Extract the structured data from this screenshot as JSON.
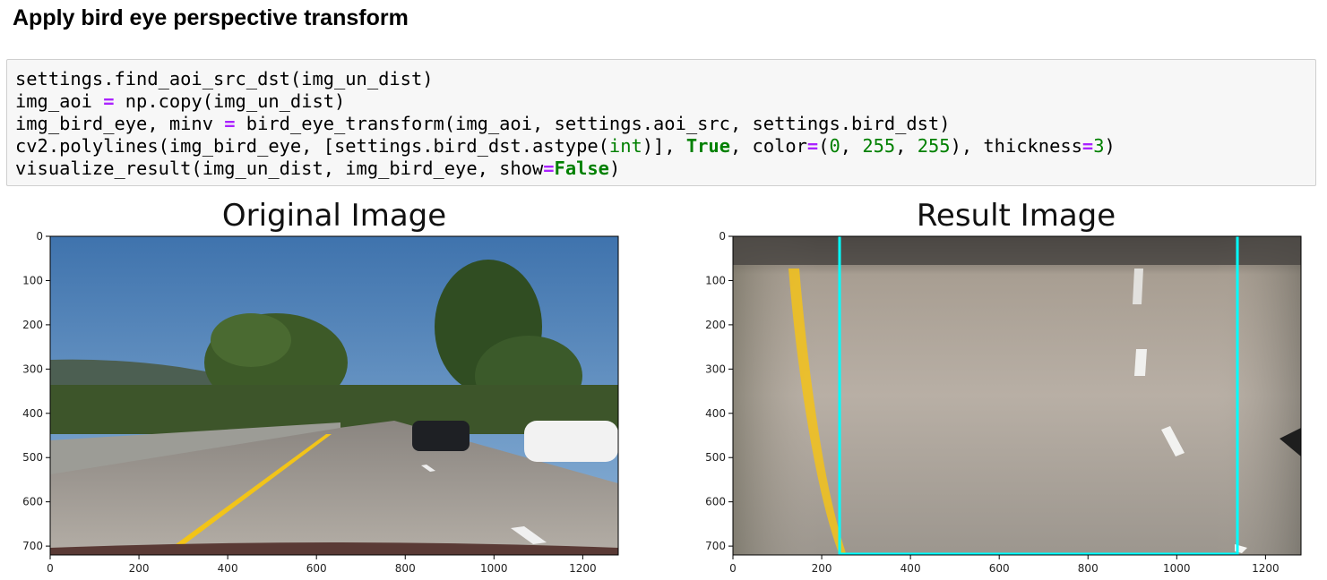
{
  "heading": "Apply bird eye perspective transform",
  "code": {
    "line1": {
      "a": "settings.find_aoi_src_dst(img_un_dist)"
    },
    "line2": {
      "a": "img_aoi ",
      "op": "=",
      "b": " np.copy(img_un_dist)"
    },
    "line3": {
      "a": "img_bird_eye, minv ",
      "op": "=",
      "b": " bird_eye_transform(img_aoi, settings.aoi_src, settings.bird_dst)"
    },
    "line4": {
      "a": "cv2.polylines(img_bird_eye, [settings.bird_dst.astype(",
      "builtin": "int",
      "b": ")], ",
      "kw": "True",
      "c": ", color",
      "op1": "=",
      "d": "(",
      "n1": "0",
      "e": ", ",
      "n2": "255",
      "f": ", ",
      "n3": "255",
      "g": "), thickness",
      "op2": "=",
      "n4": "3",
      "h": ")"
    },
    "line5": {
      "a": "visualize_result(img_un_dist, img_bird_eye, show",
      "op": "=",
      "kw": "False",
      "b": ")"
    }
  },
  "plots": {
    "left": {
      "title": "Original Image",
      "y_ticks": [
        "0",
        "100",
        "200",
        "300",
        "400",
        "500",
        "600",
        "700"
      ],
      "x_ticks": [
        "0",
        "200",
        "400",
        "600",
        "800",
        "1000",
        "1200"
      ]
    },
    "right": {
      "title": "Result Image",
      "y_ticks": [
        "0",
        "100",
        "200",
        "300",
        "400",
        "500",
        "600",
        "700"
      ],
      "x_ticks": [
        "0",
        "200",
        "400",
        "600",
        "800",
        "1000",
        "1200"
      ]
    }
  },
  "colors": {
    "polyline": "#00ffff",
    "lane_yellow": "#f5c400"
  }
}
